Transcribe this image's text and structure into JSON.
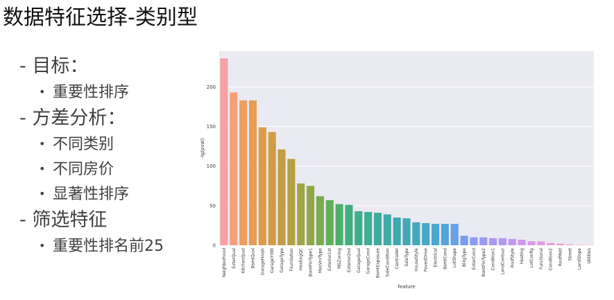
{
  "slide": {
    "title": "数据特征选择-类别型"
  },
  "bullets": [
    {
      "level": 1,
      "text": "- 目标：",
      "name": "bullet-goal"
    },
    {
      "level": 2,
      "text": "重要性排序",
      "name": "bullet-importance-ranking"
    },
    {
      "level": 1,
      "text": "- 方差分析：",
      "name": "bullet-anova"
    },
    {
      "level": 2,
      "text": "不同类别",
      "name": "bullet-different-categories"
    },
    {
      "level": 2,
      "text": "不同房价",
      "name": "bullet-different-prices"
    },
    {
      "level": 2,
      "text": "显著性排序",
      "name": "bullet-significance-ranking"
    },
    {
      "level": 1,
      "text": "- 筛选特征",
      "name": "bullet-filter-features"
    },
    {
      "level": 2,
      "text": "重要性排名前25",
      "name": "bullet-top25"
    }
  ],
  "colors": {
    "plot_background": "#eaeaf2",
    "grid": "#ffffff"
  },
  "chart_data": {
    "type": "bar",
    "xlabel": "feature",
    "ylabel": "-lg(pval)",
    "ylim": [
      0,
      245
    ],
    "yticks": [
      0,
      50,
      100,
      150,
      200
    ],
    "grid": true,
    "categories": [
      "Neighborhood",
      "ExterQual",
      "KitchenQual",
      "BsmtQual",
      "GarageFinish",
      "GarageYrBlt",
      "GarageType",
      "Foundation",
      "HeatingQC",
      "BsmtFinType1",
      "MasVnrType",
      "Exterior1st",
      "MSZoning",
      "Exterior2nd",
      "GarageQual",
      "GarageCond",
      "BsmtExposure",
      "SaleCondition",
      "CentralAir",
      "SaleType",
      "HouseStyle",
      "PavedDrive",
      "Electrical",
      "BsmtCond",
      "LotShape",
      "BldgType",
      "ExterCond",
      "BsmtFinType2",
      "Condition1",
      "LandContour",
      "RoofStyle",
      "Heating",
      "LotConfig",
      "Functional",
      "Condition2",
      "RoofMatl",
      "Street",
      "LandSlope",
      "Utilities"
    ],
    "values": [
      236,
      193,
      183,
      183,
      149,
      143,
      121,
      109,
      78,
      75,
      62,
      57,
      52,
      51,
      43,
      42,
      41,
      39,
      35,
      34,
      29,
      28,
      27,
      27,
      27,
      12,
      10,
      10,
      9,
      9,
      8,
      7,
      5,
      5,
      3,
      2,
      1,
      0.5,
      0.3
    ],
    "bar_colors": [
      "#f7a1a4",
      "#f4a178",
      "#ef9f60",
      "#e99c54",
      "#de9a4a",
      "#d19b45",
      "#c29d44",
      "#b4a045",
      "#a2a447",
      "#90a84a",
      "#7aac4f",
      "#62af59",
      "#4caf6c",
      "#43ae7d",
      "#40ad8a",
      "#3fac95",
      "#3eab9e",
      "#3faaa6",
      "#40a9ae",
      "#42a8b5",
      "#44a8bd",
      "#47a7c6",
      "#4ba6cf",
      "#55a4da",
      "#66a1e4",
      "#7a9ded",
      "#8c9bf1",
      "#9b99f3",
      "#a999f3",
      "#b598f2",
      "#c198f1",
      "#cd98ee",
      "#d999ea",
      "#e49be3",
      "#ec9cd9",
      "#f09dce",
      "#f39ec4",
      "#f5a0b9",
      "#f6a1ae"
    ]
  }
}
